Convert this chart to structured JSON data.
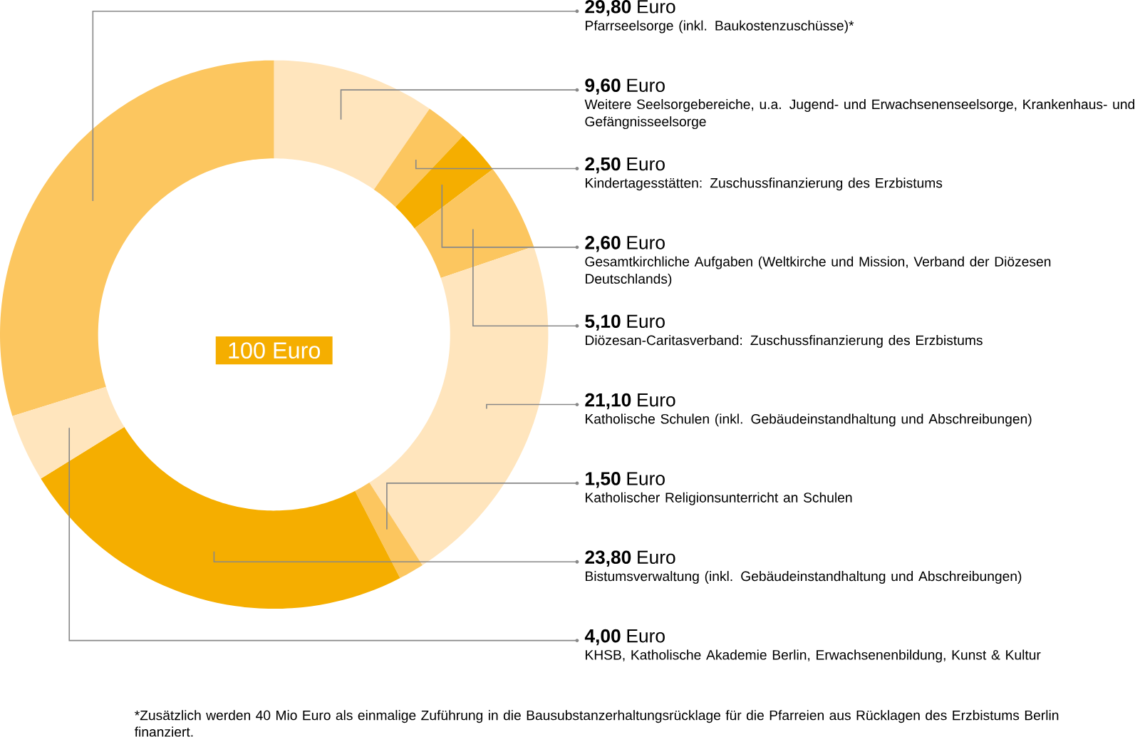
{
  "chart_data": {
    "type": "donut",
    "categories": [
      "Pfarrseelsorge (inkl. Baukostenzuschüsse)*",
      "Weitere Seelsorgebereiche, u.a. Jugend- und Erwachsenenseelsorge, Krankenhaus- und Gefängnisseelsorge",
      "Kindertagesstätten: Zuschussfinanzierung des Erzbistums",
      "Gesamtkirchliche Aufgaben (Weltkirche und Mission, Verband der Diözesen Deutschlands)",
      "Diözesan-Caritasverband: Zuschussfinanzierung des Erzbistums",
      "Katholische Schulen (inkl. Gebäudeinstandhaltung und Abschreibungen)",
      "Katholischer Religionsunterricht an Schulen",
      "Bistumsverwaltung (inkl. Gebäudeinstandhaltung und Abschreibungen)",
      "KHSB, Katholische Akademie Berlin, Erwachsenenbildung, Kunst & Kultur"
    ],
    "values": [
      29.8,
      9.6,
      2.5,
      2.6,
      5.1,
      21.1,
      1.5,
      23.8,
      4.0
    ],
    "colors": [
      "#fcc65f",
      "#ffe5bd",
      "#fcc65f",
      "#f5ae00",
      "#fcc65f",
      "#ffe5bd",
      "#fcc65f",
      "#f5ae00",
      "#ffe5bd"
    ],
    "value_labels": [
      "**29,80** Euro",
      "**9,60** Euro",
      "**2,50** Euro",
      "**2,60** Euro",
      "**5,10** Euro",
      "**21,10** Euro",
      "**1,50** Euro",
      "**23,80** Euro",
      "**4,00** Euro"
    ],
    "annotations": [
      "100 Euro",
      "*Zusätzlich werden 40 Mio Euro als einmalige Zuführung in die Bausubstanzerhaltungsrücklage für die Pfarreien aus Rücklagen des Erzbistums Berlin finanziert."
    ]
  }
}
